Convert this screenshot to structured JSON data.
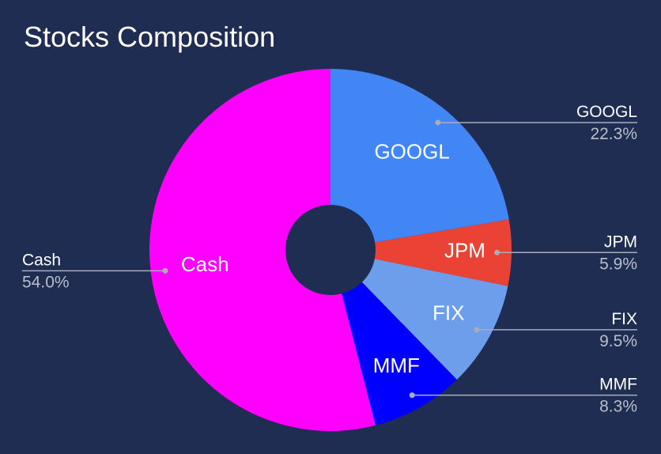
{
  "chart_data": {
    "type": "pie",
    "title": "Stocks Composition",
    "donut": true,
    "background_color": "#1f2d52",
    "slices": [
      {
        "label": "GOOGL",
        "value": 22.3,
        "percent_label": "22.3%",
        "color": "#4285f4"
      },
      {
        "label": "JPM",
        "value": 5.9,
        "percent_label": "5.9%",
        "color": "#ea4335"
      },
      {
        "label": "FIX",
        "value": 9.5,
        "percent_label": "9.5%",
        "color": "#6d9eeb"
      },
      {
        "label": "MMF",
        "value": 8.3,
        "percent_label": "8.3%",
        "color": "#0000ff"
      },
      {
        "label": "Cash",
        "value": 54.0,
        "percent_label": "54.0%",
        "color": "#ff00ff"
      }
    ]
  }
}
